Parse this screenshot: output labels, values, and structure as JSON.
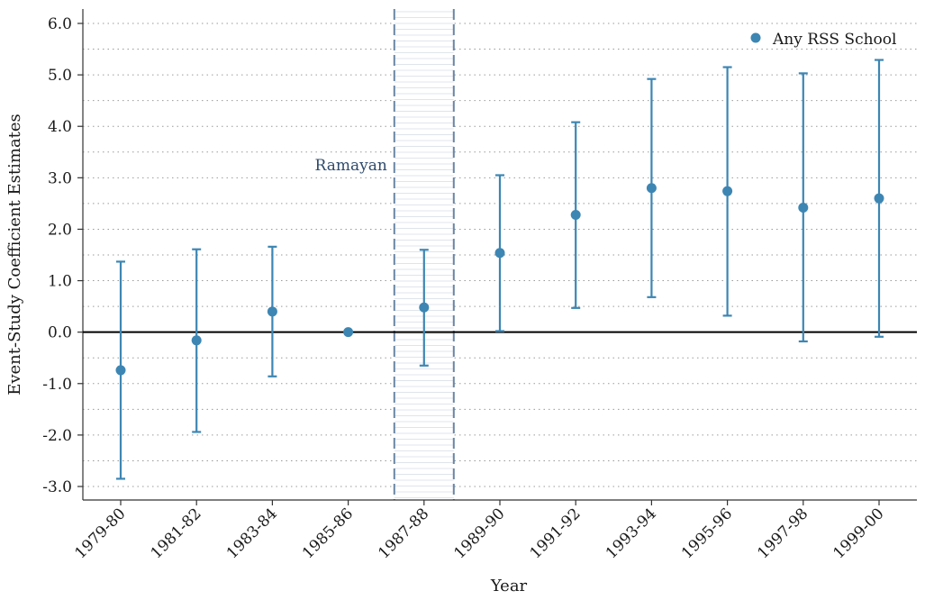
{
  "chart_data": {
    "type": "scatter",
    "subtype": "event-study coefficient plot with confidence intervals",
    "xlabel": "Year",
    "ylabel": "Event-Study Coefficient Estimates",
    "ylim": [
      -3.3,
      6.2
    ],
    "yticks": [
      -3.0,
      -2.0,
      -1.0,
      0.0,
      1.0,
      2.0,
      3.0,
      4.0,
      5.0,
      6.0
    ],
    "ytick_labels": [
      "-3.0",
      "-2.0",
      "-1.0",
      "0.0",
      "1.0",
      "2.0",
      "3.0",
      "4.0",
      "5.0",
      "6.0"
    ],
    "categories": [
      "1979-80",
      "1981-82",
      "1983-84",
      "1985-86",
      "1987-88",
      "1989-90",
      "1991-92",
      "1993-94",
      "1995-96",
      "1997-98",
      "1999-00"
    ],
    "series": [
      {
        "name": "Any RSS School",
        "color": "#3d86b3",
        "values": [
          -0.74,
          -0.16,
          0.4,
          0.0,
          0.48,
          1.54,
          2.28,
          2.8,
          2.74,
          2.42,
          2.6
        ],
        "ci_lower": [
          -2.85,
          -1.94,
          -0.86,
          0.0,
          -0.65,
          0.02,
          0.47,
          0.68,
          0.32,
          -0.18,
          -0.09
        ],
        "ci_upper": [
          1.37,
          1.61,
          1.66,
          0.0,
          1.6,
          3.05,
          4.08,
          4.92,
          5.15,
          5.03,
          5.29
        ]
      }
    ],
    "reference_line": {
      "y": 0,
      "color": "#000000"
    },
    "shaded_period": {
      "label": "Ramayan",
      "category": "1987-88",
      "band_color": "#dfe5ec",
      "line_color": "#6a86a5"
    },
    "grid": "horizontal dotted",
    "legend": {
      "position": "top-right",
      "entries": [
        "Any RSS School"
      ]
    }
  }
}
